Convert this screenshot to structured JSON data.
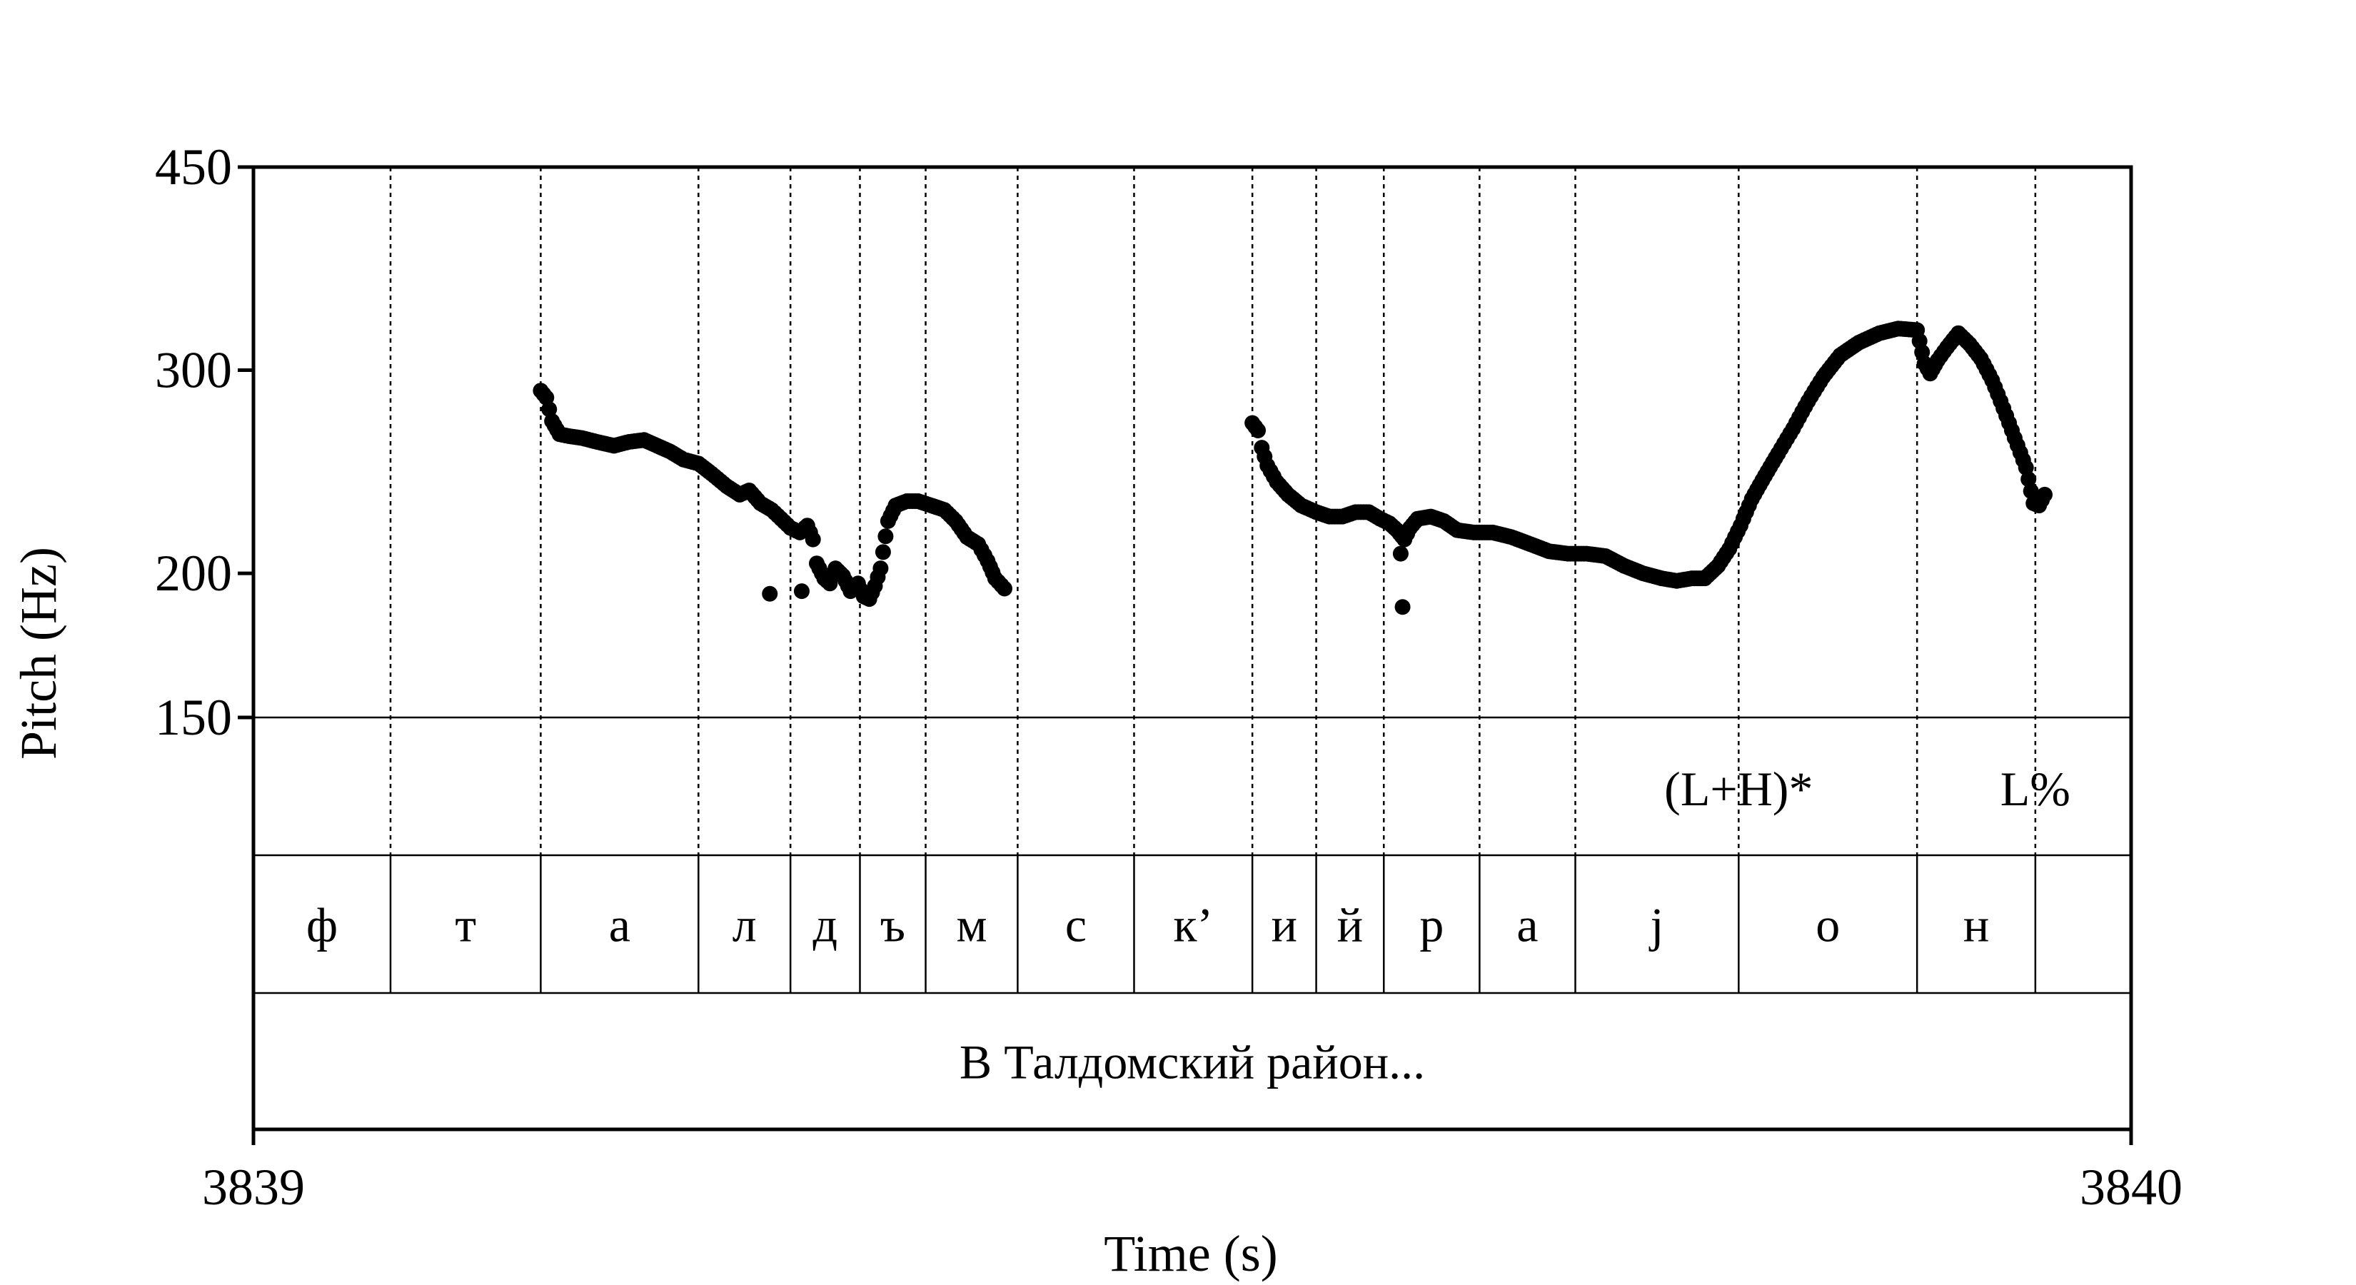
{
  "chart_data": {
    "type": "scatter",
    "xlabel": "Time (s)",
    "ylabel": "Pitch (Hz)",
    "xlim": [
      3839,
      3840
    ],
    "ylim": [
      150,
      450
    ],
    "y_scale": "log",
    "x_ticks": [
      "3839",
      "3840"
    ],
    "y_ticks": [
      {
        "value": 450,
        "label": "450"
      },
      {
        "value": 300,
        "label": "300"
      },
      {
        "value": 200,
        "label": "200"
      },
      {
        "value": 150,
        "label": "150"
      }
    ],
    "grid": false,
    "segment_boundaries": [
      3839.073,
      3839.153,
      3839.237,
      3839.286,
      3839.323,
      3839.358,
      3839.407,
      3839.469,
      3839.532,
      3839.566,
      3839.602,
      3839.653,
      3839.704,
      3839.791,
      3839.886,
      3839.949
    ],
    "tone_tier": [
      {
        "label": "(L+H)*",
        "time": 3839.791
      },
      {
        "label": "L%",
        "time": 3839.949
      }
    ],
    "segment_tier": [
      "ф",
      "т",
      "а",
      "л",
      "д",
      "ъ",
      "м",
      "с",
      "к’",
      "и",
      "й",
      "р",
      "а",
      "j",
      "о",
      "н"
    ],
    "utterance": "В Талдомский район...",
    "pitch_series": [
      {
        "points": [
          [
            3839.153,
            288
          ],
          [
            3839.156,
            284
          ],
          [
            3839.159,
            271
          ],
          [
            3839.163,
            264
          ],
          [
            3839.168,
            263
          ],
          [
            3839.175,
            262
          ],
          [
            3839.183,
            260
          ],
          [
            3839.192,
            258
          ],
          [
            3839.2,
            260
          ],
          [
            3839.208,
            261
          ],
          [
            3839.215,
            258
          ],
          [
            3839.222,
            255
          ],
          [
            3839.229,
            251
          ],
          [
            3839.237,
            249
          ],
          [
            3839.244,
            244
          ],
          [
            3839.252,
            238
          ],
          [
            3839.259,
            234
          ],
          [
            3839.264,
            236
          ],
          [
            3839.27,
            230
          ],
          [
            3839.276,
            227
          ],
          [
            3839.281,
            223
          ],
          [
            3839.286,
            219
          ],
          [
            3839.291,
            217
          ],
          [
            3839.295,
            220
          ],
          [
            3839.298,
            214
          ],
          [
            3839.3,
            204
          ],
          [
            3839.304,
            198
          ],
          [
            3839.307,
            196
          ],
          [
            3839.31,
            202
          ],
          [
            3839.314,
            199
          ],
          [
            3839.318,
            193
          ],
          [
            3839.322,
            196
          ],
          [
            3839.325,
            191
          ],
          [
            3839.328,
            190
          ],
          [
            3839.331,
            195
          ],
          [
            3839.334,
            202
          ],
          [
            3839.338,
            222
          ],
          [
            3839.342,
            229
          ],
          [
            3839.348,
            231
          ],
          [
            3839.354,
            231
          ],
          [
            3839.361,
            229
          ],
          [
            3839.368,
            227
          ],
          [
            3839.374,
            222
          ],
          [
            3839.38,
            215
          ],
          [
            3839.386,
            212
          ],
          [
            3839.391,
            205
          ],
          [
            3839.395,
            198
          ],
          [
            3839.4,
            194
          ]
        ],
        "outliers": [
          [
            3839.275,
            192
          ],
          [
            3839.292,
            193
          ]
        ]
      },
      {
        "points": [
          [
            3839.532,
            270
          ],
          [
            3839.535,
            266
          ],
          [
            3839.537,
            257
          ],
          [
            3839.54,
            248
          ],
          [
            3839.545,
            240
          ],
          [
            3839.551,
            234
          ],
          [
            3839.558,
            229
          ],
          [
            3839.566,
            226
          ],
          [
            3839.573,
            224
          ],
          [
            3839.58,
            224
          ],
          [
            3839.587,
            226
          ],
          [
            3839.594,
            226
          ],
          [
            3839.6,
            223
          ],
          [
            3839.605,
            221
          ],
          [
            3839.609,
            218
          ],
          [
            3839.613,
            214
          ],
          [
            3839.616,
            219
          ],
          [
            3839.62,
            223
          ],
          [
            3839.627,
            224
          ],
          [
            3839.634,
            222
          ],
          [
            3839.641,
            218
          ],
          [
            3839.65,
            217
          ],
          [
            3839.66,
            217
          ],
          [
            3839.67,
            215
          ],
          [
            3839.68,
            212
          ],
          [
            3839.69,
            209
          ],
          [
            3839.7,
            208
          ],
          [
            3839.71,
            208
          ],
          [
            3839.72,
            207
          ],
          [
            3839.73,
            203
          ],
          [
            3839.74,
            200
          ],
          [
            3839.75,
            198
          ],
          [
            3839.758,
            197
          ],
          [
            3839.766,
            198
          ],
          [
            3839.773,
            198
          ],
          [
            3839.78,
            203
          ],
          [
            3839.786,
            210
          ],
          [
            3839.792,
            220
          ],
          [
            3839.798,
            232
          ],
          [
            3839.805,
            243
          ],
          [
            3839.812,
            254
          ],
          [
            3839.82,
            267
          ],
          [
            3839.828,
            282
          ],
          [
            3839.836,
            296
          ],
          [
            3839.845,
            309
          ],
          [
            3839.855,
            317
          ],
          [
            3839.866,
            323
          ],
          [
            3839.876,
            326
          ],
          [
            3839.886,
            325
          ],
          [
            3839.89,
            304
          ],
          [
            3839.893,
            298
          ],
          [
            3839.897,
            306
          ],
          [
            3839.902,
            314
          ],
          [
            3839.908,
            323
          ],
          [
            3839.914,
            316
          ],
          [
            3839.92,
            307
          ],
          [
            3839.926,
            294
          ],
          [
            3839.932,
            278
          ],
          [
            3839.938,
            262
          ],
          [
            3839.944,
            247
          ],
          [
            3839.948,
            230
          ],
          [
            3839.951,
            229
          ],
          [
            3839.954,
            234
          ]
        ],
        "outliers": [
          [
            3839.611,
            208
          ],
          [
            3839.612,
            187
          ]
        ]
      }
    ]
  }
}
